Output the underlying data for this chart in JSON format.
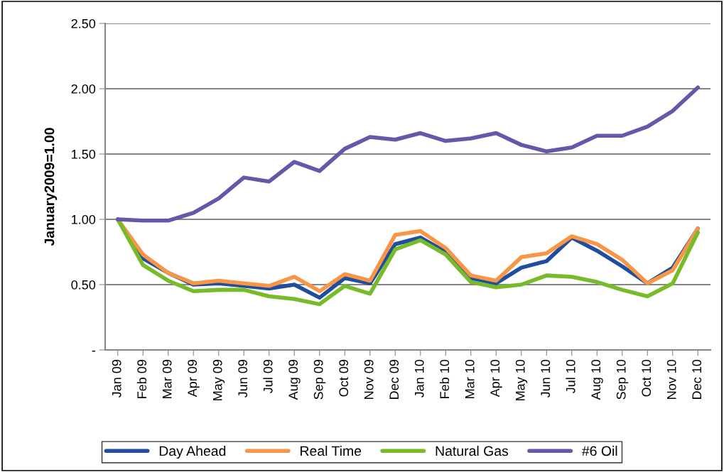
{
  "chart_data": {
    "type": "line",
    "ylabel": "January2009=1.00",
    "categories": [
      "Jan 09",
      "Feb 09",
      "Mar 09",
      "Apr 09",
      "May 09",
      "Jun 09",
      "Jul 09",
      "Aug 09",
      "Sep 09",
      "Oct 09",
      "Nov 09",
      "Dec 09",
      "Jan 10",
      "Feb 10",
      "Mar 10",
      "Apr 10",
      "May 10",
      "Jun 10",
      "Jul 10",
      "Aug 10",
      "Sep 10",
      "Oct 10",
      "Nov 10",
      "Dec 10"
    ],
    "series": [
      {
        "name": "Day Ahead",
        "color": "#1f4e9c",
        "values": [
          1.0,
          0.7,
          0.59,
          0.5,
          0.51,
          0.49,
          0.47,
          0.5,
          0.4,
          0.55,
          0.51,
          0.81,
          0.86,
          0.75,
          0.55,
          0.51,
          0.63,
          0.68,
          0.86,
          0.76,
          0.64,
          0.51,
          0.63,
          0.93
        ]
      },
      {
        "name": "Real Time",
        "color": "#f79646",
        "values": [
          1.0,
          0.73,
          0.59,
          0.51,
          0.53,
          0.51,
          0.49,
          0.56,
          0.45,
          0.58,
          0.53,
          0.88,
          0.91,
          0.78,
          0.57,
          0.53,
          0.71,
          0.74,
          0.87,
          0.81,
          0.69,
          0.51,
          0.61,
          0.93
        ]
      },
      {
        "name": "Natural Gas",
        "color": "#77bb2b",
        "values": [
          1.0,
          0.65,
          0.53,
          0.45,
          0.46,
          0.46,
          0.41,
          0.39,
          0.35,
          0.49,
          0.43,
          0.77,
          0.84,
          0.73,
          0.52,
          0.48,
          0.5,
          0.57,
          0.56,
          0.52,
          0.46,
          0.41,
          0.51,
          0.9
        ]
      },
      {
        "name": "#6 Oil",
        "color": "#6658a8",
        "values": [
          1.0,
          0.99,
          0.99,
          1.05,
          1.16,
          1.32,
          1.29,
          1.44,
          1.37,
          1.54,
          1.63,
          1.61,
          1.66,
          1.6,
          1.62,
          1.66,
          1.57,
          1.52,
          1.55,
          1.64,
          1.64,
          1.71,
          1.83,
          2.01
        ]
      }
    ],
    "ylim": [
      0,
      2.5
    ],
    "yticks": [
      {
        "value": 0,
        "label": "-"
      },
      {
        "value": 0.5,
        "label": "0.50"
      },
      {
        "value": 1.0,
        "label": "1.00"
      },
      {
        "value": 1.5,
        "label": "1.50"
      },
      {
        "value": 2.0,
        "label": "2.00"
      },
      {
        "value": 2.5,
        "label": "2.50"
      }
    ],
    "grid": "y",
    "legend": "bottom",
    "marker": "none",
    "line_style": "solid"
  }
}
